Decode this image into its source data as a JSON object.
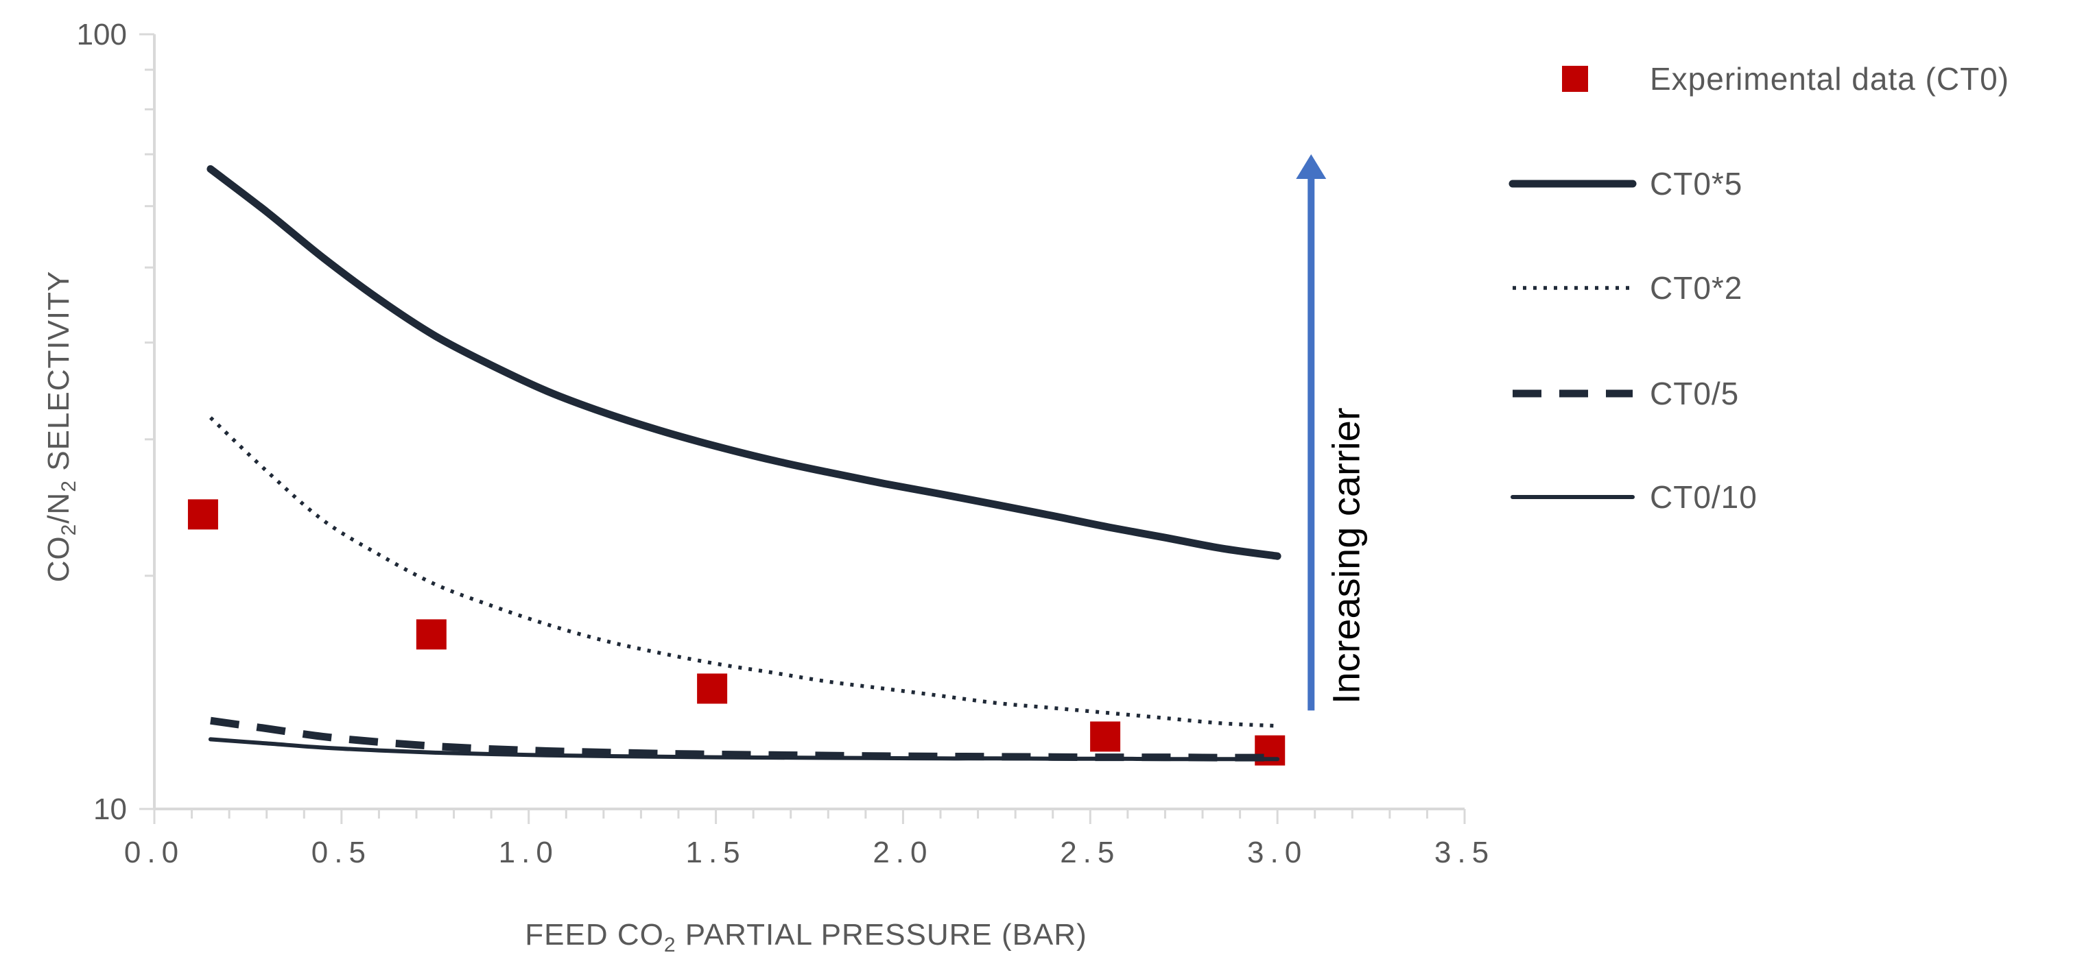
{
  "chart_data": {
    "type": "line",
    "title": "",
    "xlabel": {
      "pre": "FEED CO",
      "sub": "2",
      "post": " PARTIAL PRESSURE (BAR)"
    },
    "ylabel": {
      "pre": "CO",
      "sub1": "2",
      "mid": "/N",
      "sub2": "2",
      "post": " SELECTIVITY"
    },
    "xlim": [
      0.0,
      3.5
    ],
    "ylim": [
      10,
      100
    ],
    "yscale": "log",
    "x_ticks": [
      "0.0",
      "0.5",
      "1.0",
      "1.5",
      "2.0",
      "2.5",
      "3.0",
      "3.5"
    ],
    "y_ticks": [
      "10",
      "100"
    ],
    "legend_position": "right",
    "series": [
      {
        "name": "Experimental data (CT0)",
        "style": "marker-square",
        "color": "#c00000",
        "x": [
          0.13,
          0.74,
          1.49,
          2.54,
          2.98
        ],
        "y": [
          24.0,
          16.8,
          14.3,
          12.4,
          11.9
        ]
      },
      {
        "name": "CT0*5",
        "style": "solid-thick",
        "color": "#1f2937",
        "x": [
          0.15,
          0.3,
          0.45,
          0.6,
          0.75,
          0.9,
          1.05,
          1.2,
          1.35,
          1.5,
          1.65,
          1.8,
          1.95,
          2.1,
          2.25,
          2.4,
          2.55,
          2.7,
          2.85,
          3.0
        ],
        "y": [
          67.0,
          59.0,
          51.5,
          45.5,
          40.8,
          37.4,
          34.6,
          32.5,
          30.8,
          29.4,
          28.2,
          27.2,
          26.3,
          25.5,
          24.7,
          23.9,
          23.1,
          22.4,
          21.7,
          21.2
        ]
      },
      {
        "name": "CT0*2",
        "style": "dotted",
        "color": "#1f2937",
        "x": [
          0.15,
          0.3,
          0.45,
          0.6,
          0.75,
          0.9,
          1.05,
          1.2,
          1.35,
          1.5,
          1.65,
          1.8,
          1.95,
          2.1,
          2.25,
          2.4,
          2.55,
          2.7,
          2.85,
          3.0
        ],
        "y": [
          32.0,
          27.3,
          23.6,
          21.3,
          19.5,
          18.3,
          17.3,
          16.5,
          15.9,
          15.4,
          15.0,
          14.6,
          14.3,
          14.0,
          13.7,
          13.5,
          13.3,
          13.1,
          12.9,
          12.8
        ]
      },
      {
        "name": "CT0/5",
        "style": "dashed",
        "color": "#1f2937",
        "x": [
          0.15,
          0.3,
          0.45,
          0.6,
          0.75,
          0.9,
          1.05,
          1.2,
          1.35,
          1.5,
          1.65,
          1.8,
          1.95,
          2.1,
          2.25,
          2.4,
          2.55,
          2.7,
          2.85,
          3.0
        ],
        "y": [
          13.0,
          12.7,
          12.4,
          12.2,
          12.05,
          11.95,
          11.88,
          11.83,
          11.79,
          11.76,
          11.74,
          11.72,
          11.7,
          11.69,
          11.68,
          11.67,
          11.66,
          11.66,
          11.65,
          11.65
        ]
      },
      {
        "name": "CT0/10",
        "style": "solid-thin",
        "color": "#1f2937",
        "x": [
          0.15,
          0.3,
          0.45,
          0.6,
          0.75,
          0.9,
          1.05,
          1.2,
          1.35,
          1.5,
          1.65,
          1.8,
          1.95,
          2.1,
          2.25,
          2.4,
          2.55,
          2.7,
          2.85,
          3.0
        ],
        "y": [
          12.3,
          12.15,
          12.0,
          11.9,
          11.82,
          11.77,
          11.73,
          11.7,
          11.68,
          11.66,
          11.65,
          11.64,
          11.63,
          11.62,
          11.62,
          11.61,
          11.61,
          11.6,
          11.6,
          11.6
        ]
      }
    ],
    "annotation": {
      "text": "Increasing carrier",
      "arrow_color": "#4472c4",
      "x": 3.09,
      "y_from": 13.4,
      "y_to": 70
    }
  }
}
